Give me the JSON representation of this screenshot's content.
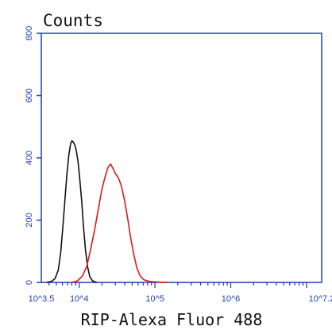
{
  "chart_data": {
    "type": "line",
    "title": "",
    "ylabel": "Counts",
    "xlabel": "RIP-Alexa Fluor 488",
    "x_scale": "log",
    "xlim": [
      3162,
      15848932
    ],
    "ylim": [
      0,
      800
    ],
    "y_ticks": [
      0,
      200,
      400,
      600,
      800
    ],
    "y_tick_labels": [
      "0",
      "200",
      "400",
      "600",
      "800"
    ],
    "x_ticks": [
      3162,
      10000,
      100000,
      1000000,
      15848932
    ],
    "x_tick_labels": [
      "10^3.5",
      "10^4",
      "10^5",
      "10^6",
      "10^7.2"
    ],
    "grid": false,
    "legend": "none",
    "colors": {
      "axis": "#1f3fb0",
      "series_black": "#111111",
      "series_red": "#e01818"
    },
    "series": [
      {
        "color": "#111111",
        "points": [
          [
            3700,
            0
          ],
          [
            4300,
            3
          ],
          [
            4800,
            12
          ],
          [
            5300,
            40
          ],
          [
            5700,
            95
          ],
          [
            6100,
            180
          ],
          [
            6500,
            270
          ],
          [
            6900,
            350
          ],
          [
            7300,
            410
          ],
          [
            7700,
            445
          ],
          [
            8000,
            455
          ],
          [
            8400,
            450
          ],
          [
            8800,
            440
          ],
          [
            9200,
            420
          ],
          [
            9700,
            385
          ],
          [
            10200,
            330
          ],
          [
            10800,
            260
          ],
          [
            11400,
            180
          ],
          [
            12100,
            105
          ],
          [
            12900,
            50
          ],
          [
            13800,
            18
          ],
          [
            15000,
            5
          ],
          [
            17000,
            0
          ]
        ]
      },
      {
        "color": "#e01818",
        "points": [
          [
            8000,
            0
          ],
          [
            9500,
            5
          ],
          [
            11000,
            20
          ],
          [
            12500,
            50
          ],
          [
            14000,
            100
          ],
          [
            16000,
            170
          ],
          [
            18000,
            240
          ],
          [
            20000,
            300
          ],
          [
            22000,
            340
          ],
          [
            24000,
            370
          ],
          [
            26000,
            380
          ],
          [
            28000,
            365
          ],
          [
            30000,
            350
          ],
          [
            33000,
            335
          ],
          [
            36000,
            310
          ],
          [
            40000,
            260
          ],
          [
            44000,
            200
          ],
          [
            48000,
            140
          ],
          [
            53000,
            85
          ],
          [
            58000,
            45
          ],
          [
            64000,
            20
          ],
          [
            72000,
            8
          ],
          [
            85000,
            3
          ],
          [
            110000,
            1
          ],
          [
            150000,
            0
          ]
        ]
      }
    ]
  }
}
